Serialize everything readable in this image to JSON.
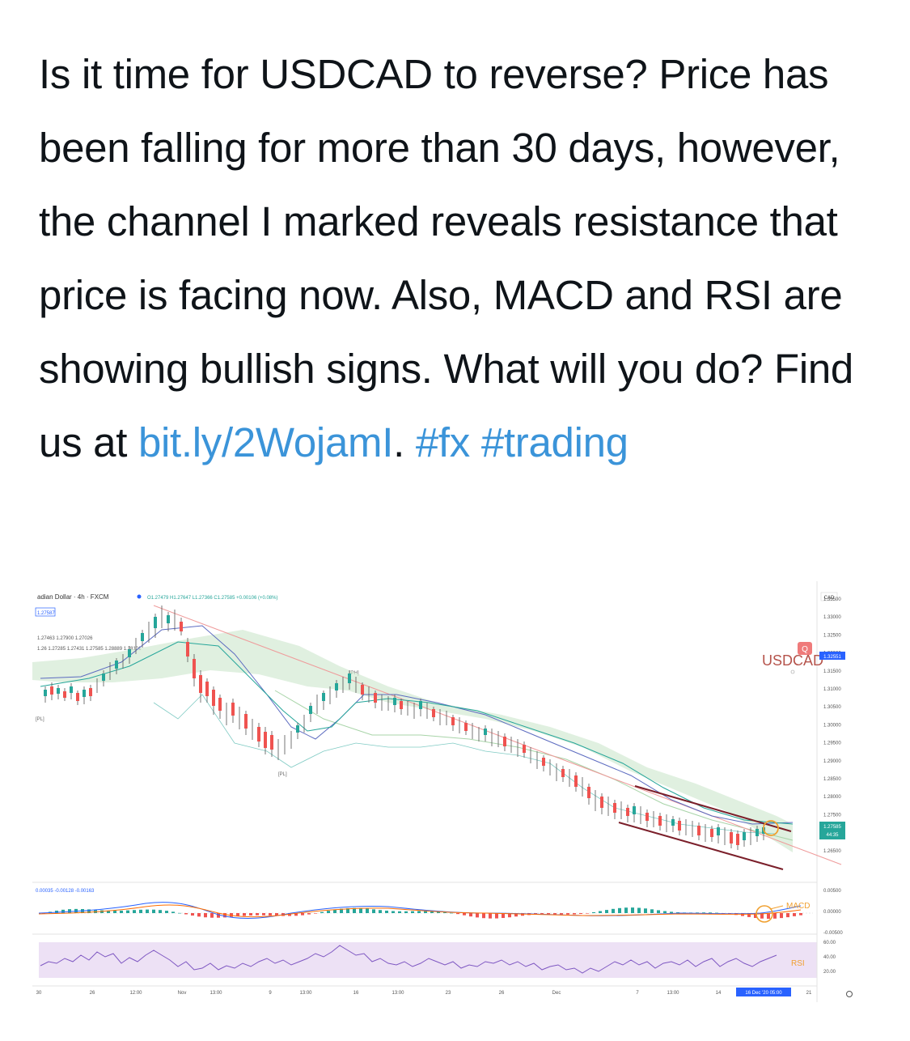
{
  "tweet": {
    "body": "Is it time for USDCAD to reverse? Price has been falling for more than 30 days, however, the channel I marked reveals resistance that price is facing now. Also, MACD and RSI are showing bullish signs. What will you do? Find us at ",
    "link": "bit.ly/2WojamI",
    "sep": ". ",
    "hashtag1": "#fx",
    "space": " ",
    "hashtag2": "#trading"
  },
  "chart": {
    "header": "adian Dollar · 4h · FXCM",
    "ohlc": "O1.27479 H1.27647 L1.27366 C1.27585 +0.00106 (+0.08%)",
    "price_tag": "1.27587",
    "ind_line1": "1.27463 1.27900 1.27026",
    "ind_line2": "1.26 1.27285 1.27431 1.27585 1.28889 1.28101",
    "pl_label": "[PL]",
    "ph_label": "[PH]",
    "pl2_label": "[PL]",
    "symbol": "USDCAD",
    "currency": "CAD",
    "macd_values": "0.00035 -0.00128 -0.00163",
    "macd_label": "MACD",
    "rsi_label": "RSI",
    "price_axis": [
      "1.33500",
      "1.33000",
      "1.32500",
      "1.32000",
      "1.31500",
      "1.31000",
      "1.30500",
      "1.30000",
      "1.29500",
      "1.29000",
      "1.28500",
      "1.28000",
      "1.27500",
      "1.27000",
      "1.26500"
    ],
    "current_price": "1.27585",
    "current_sub": "44:35",
    "highlight_price": "1.32551",
    "macd_axis": [
      "0.00500",
      "0.00000",
      "-0.00500"
    ],
    "rsi_axis": [
      "60.00",
      "40.00",
      "20.00"
    ],
    "time_axis": [
      "30",
      "26",
      "12:00",
      "Nov",
      "13:00",
      "9",
      "13:00",
      "16",
      "13:00",
      "23",
      "26",
      "Dec",
      "7",
      "13:00",
      "14",
      "21"
    ],
    "time_highlight": "16 Dec '20  05:00"
  }
}
